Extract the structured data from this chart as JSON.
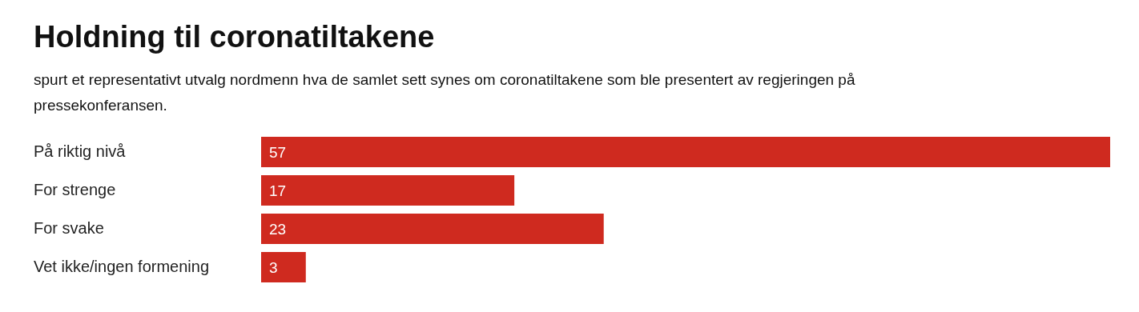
{
  "chart_data": {
    "type": "bar",
    "orientation": "horizontal",
    "title": "Holdning til coronatiltakene",
    "subtitle": "spurt et representativt utvalg nordmenn hva de samlet sett synes om coronatiltakene som ble presentert av regjeringen på pressekonferansen.",
    "categories": [
      "På riktig nivå",
      "For strenge",
      "For svake",
      "Vet ikke/ingen formening"
    ],
    "values": [
      57,
      17,
      23,
      3
    ],
    "color": "#cf2a1f",
    "xlim": [
      0,
      57
    ],
    "data_labels": true
  }
}
